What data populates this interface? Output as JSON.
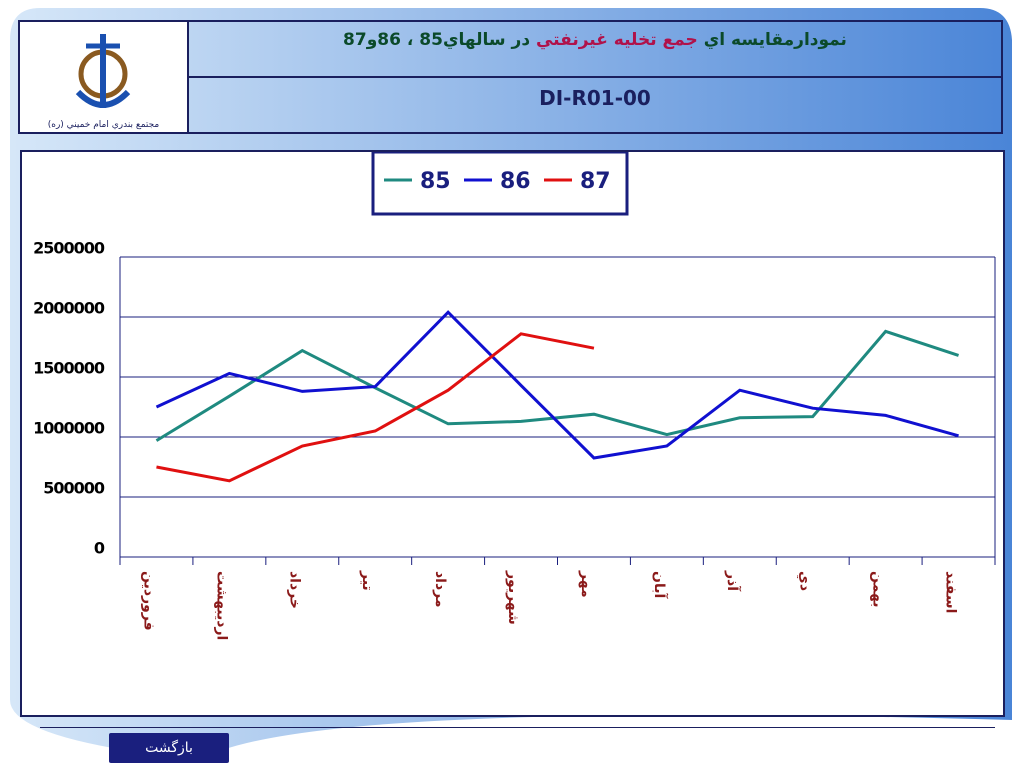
{
  "header": {
    "logo_caption": "مجتمع بندري امام خميني (ره)",
    "title_parts": [
      "نمودارمقايسه اي ",
      "جمع تخليه غيرنفتي",
      " در سالهاي85 ، 86و87"
    ],
    "title_colors": [
      "#0b4a2a",
      "#b0124a",
      "#0b4a2a"
    ],
    "subtitle": "DI-R01-00"
  },
  "chart_data": {
    "type": "line",
    "categories": [
      "فروردين",
      "ارديبهشت",
      "خرداد",
      "تير",
      "مرداد",
      "شهريور",
      "مهر",
      "آبان",
      "آذر",
      "دي",
      "بهمن",
      "اسفند"
    ],
    "series": [
      {
        "name": "85",
        "color": "#1f8a80",
        "values": [
          970000,
          1340000,
          1720000,
          1410000,
          1110000,
          1130000,
          1190000,
          1020000,
          1160000,
          1170000,
          1880000,
          1680000
        ]
      },
      {
        "name": "86",
        "color": "#1010d0",
        "values": [
          1250000,
          1530000,
          1380000,
          1420000,
          2040000,
          1430000,
          825000,
          925000,
          1390000,
          1240000,
          1180000,
          1010000
        ]
      },
      {
        "name": "87",
        "color": "#e01010",
        "values": [
          750000,
          635000,
          925000,
          1050000,
          1390000,
          1860000,
          1740000,
          null,
          null,
          null,
          null,
          null
        ]
      }
    ],
    "ylim": [
      0,
      2500000
    ],
    "yticks": [
      0,
      500000,
      1000000,
      1500000,
      2000000,
      2500000
    ],
    "grid": true,
    "legend": "top"
  },
  "nav": {
    "back": "بازگشت"
  }
}
